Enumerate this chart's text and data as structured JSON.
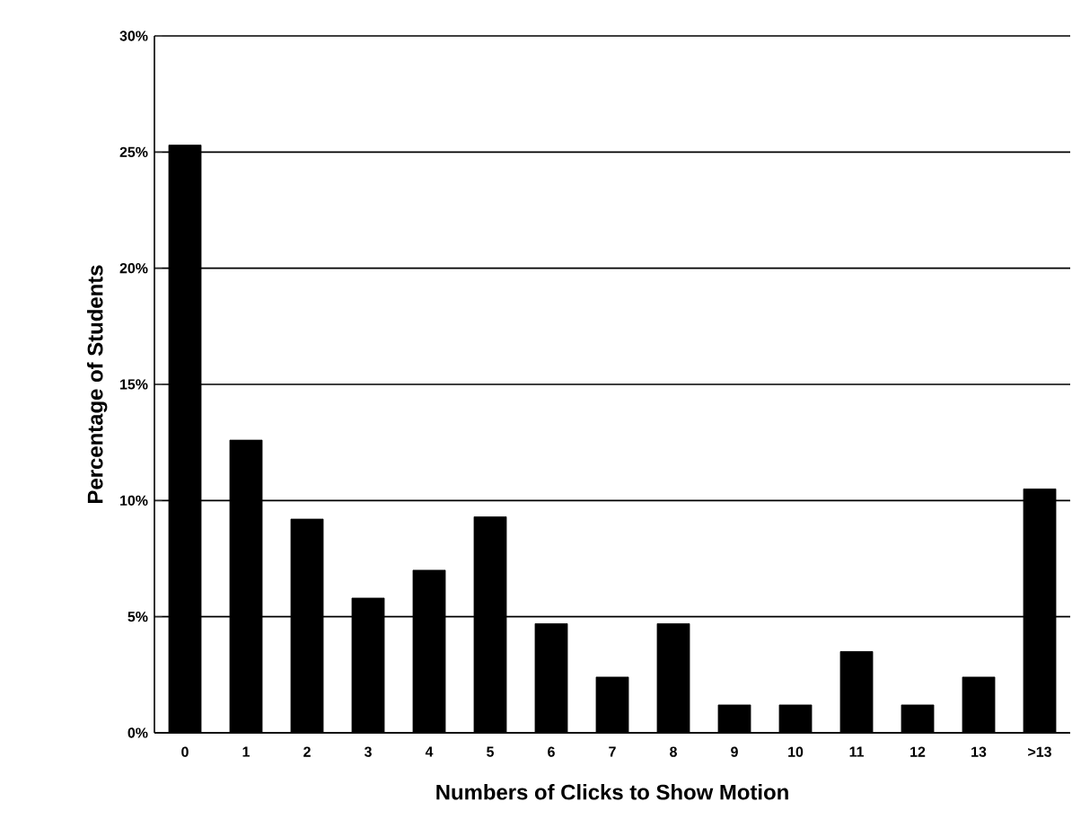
{
  "chart_data": {
    "type": "bar",
    "xlabel": "Numbers of Clicks to Show Motion",
    "ylabel": "Percentage of Students",
    "categories": [
      "0",
      "1",
      "2",
      "3",
      "4",
      "5",
      "6",
      "7",
      "8",
      "9",
      "10",
      "11",
      "12",
      "13",
      ">13"
    ],
    "values": [
      25.3,
      12.6,
      9.2,
      5.8,
      7.0,
      9.3,
      4.7,
      2.4,
      4.7,
      1.2,
      1.2,
      3.5,
      1.2,
      2.4,
      10.5
    ],
    "color": "#000000",
    "ylim": [
      0,
      30
    ],
    "yticks": [
      {
        "value": 0,
        "label": "0%"
      },
      {
        "value": 5,
        "label": "5%"
      },
      {
        "value": 10,
        "label": "10%"
      },
      {
        "value": 15,
        "label": "15%"
      },
      {
        "value": 20,
        "label": "20%"
      },
      {
        "value": 25,
        "label": "25%"
      },
      {
        "value": 30,
        "label": "30%"
      }
    ],
    "grid": "y"
  }
}
